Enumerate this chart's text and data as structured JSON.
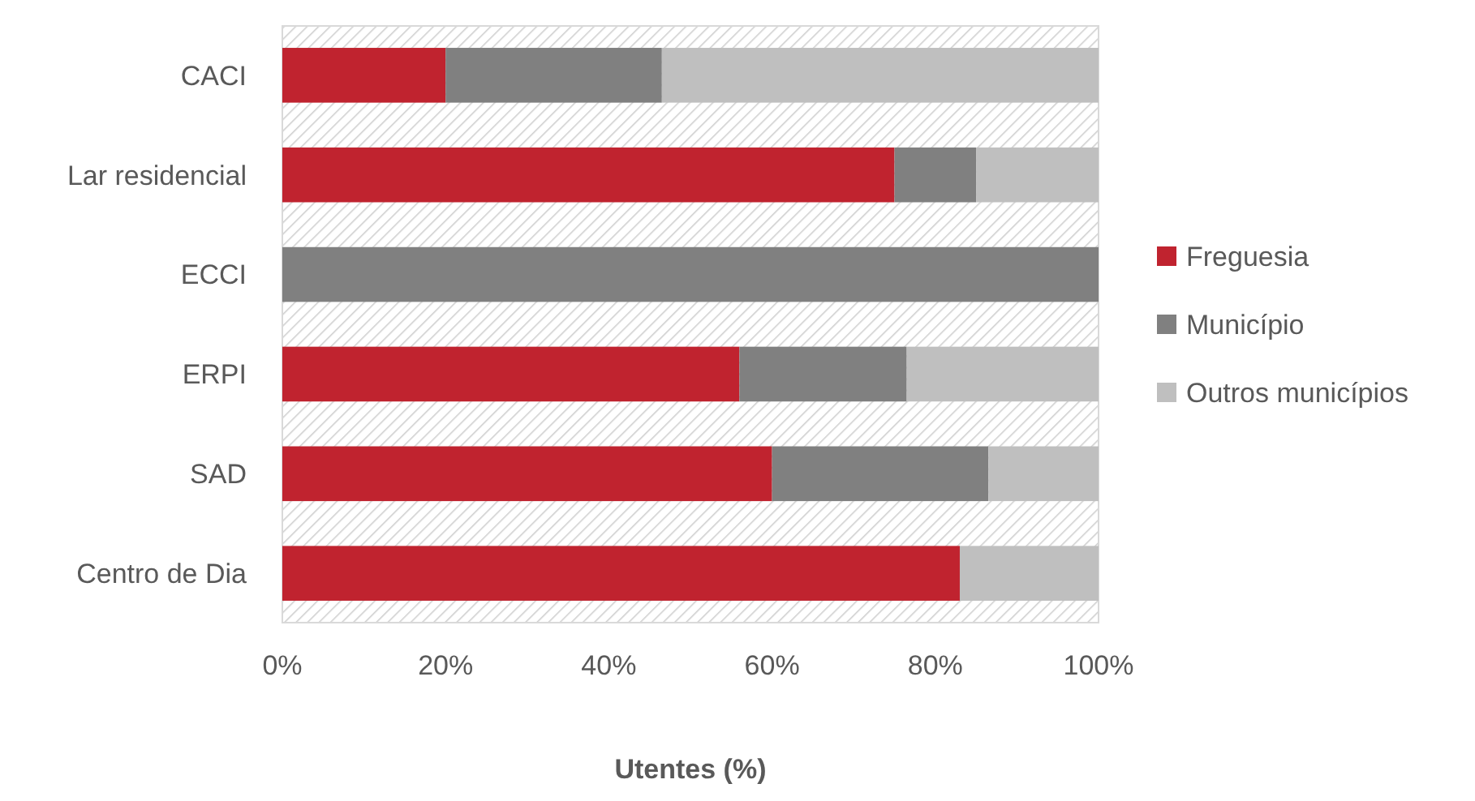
{
  "chart_data": {
    "type": "bar",
    "orientation": "horizontal",
    "stacked": true,
    "xlabel": "Utentes (%)",
    "categories": [
      "CACI",
      "Lar residencial",
      "ECCI",
      "ERPI",
      "SAD",
      "Centro de Dia"
    ],
    "series": [
      {
        "name": "Freguesia",
        "color": "#c0232f",
        "values": [
          20,
          75,
          0,
          56,
          60,
          83
        ]
      },
      {
        "name": "Município",
        "color": "#808080",
        "values": [
          26.5,
          10,
          100,
          20.5,
          26.5,
          0
        ]
      },
      {
        "name": "Outros municípios",
        "color": "#bfbfbf",
        "values": [
          53.5,
          15,
          0,
          23.5,
          13.5,
          17
        ]
      }
    ],
    "xlim": [
      0,
      100
    ],
    "xticks": [
      {
        "value": 0,
        "label": "0%"
      },
      {
        "value": 20,
        "label": "20%"
      },
      {
        "value": 40,
        "label": "40%"
      },
      {
        "value": 60,
        "label": "60%"
      },
      {
        "value": 80,
        "label": "80%"
      },
      {
        "value": 100,
        "label": "100%"
      }
    ],
    "legend": "right"
  }
}
